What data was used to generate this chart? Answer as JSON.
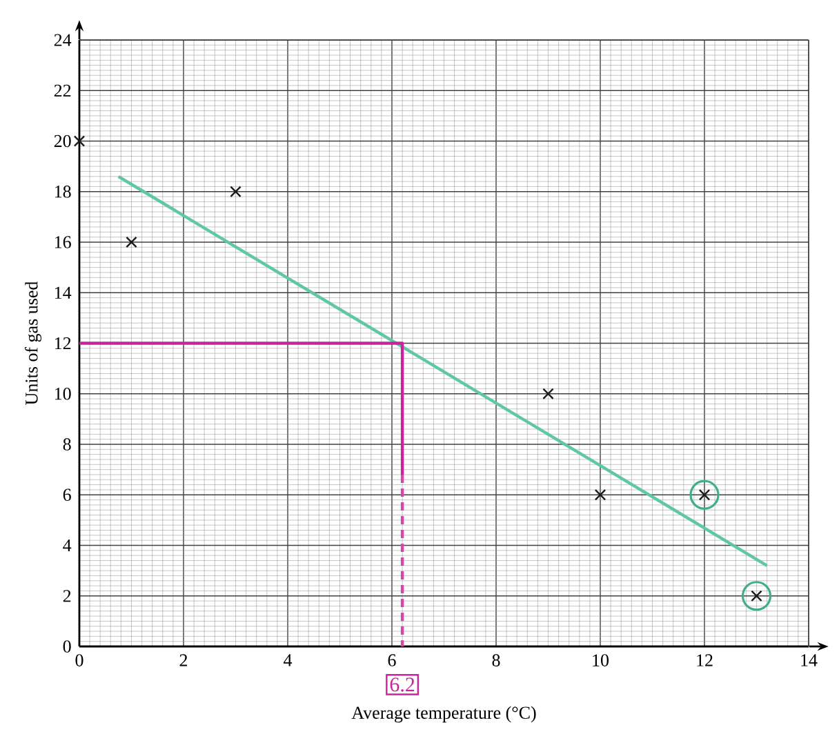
{
  "chart_data": {
    "type": "scatter",
    "xlabel": "Average temperature (°C)",
    "ylabel": "Units of gas used",
    "xlim": [
      0,
      14
    ],
    "ylim": [
      0,
      24
    ],
    "xticks": [
      0,
      2,
      4,
      6,
      8,
      10,
      12,
      14
    ],
    "yticks": [
      0,
      2,
      4,
      6,
      8,
      10,
      12,
      14,
      16,
      18,
      20,
      22,
      24
    ],
    "grid": true,
    "marker": "cross",
    "series": [
      {
        "color": "#1a1a1a",
        "x": [
          0,
          1,
          3,
          9,
          10,
          12,
          13
        ],
        "values": [
          20,
          16,
          18,
          10,
          6,
          6,
          2
        ]
      },
      {
        "color": "#3fae8e",
        "marker": "circle",
        "x": [
          12,
          13
        ],
        "values": [
          6,
          2
        ]
      },
      {
        "type": "line",
        "color": "#5fc7a8",
        "marker": "none",
        "line_style": "solid",
        "x": [
          0.75,
          13.2
        ],
        "values": [
          18.6,
          3.2
        ]
      },
      {
        "type": "line",
        "color": "#c8259a",
        "marker": "none",
        "line_style": "solid",
        "x": [
          0,
          6.2,
          6.2
        ],
        "values": [
          12,
          12,
          6.8
        ]
      },
      {
        "type": "line",
        "color": "#d04aa8",
        "marker": "none",
        "line_style": "dashed",
        "x": [
          6.2,
          6.2
        ],
        "values": [
          6.8,
          0
        ]
      }
    ],
    "annotations": [
      {
        "text": "6.2",
        "x": 6.2,
        "y": 0
      }
    ]
  }
}
